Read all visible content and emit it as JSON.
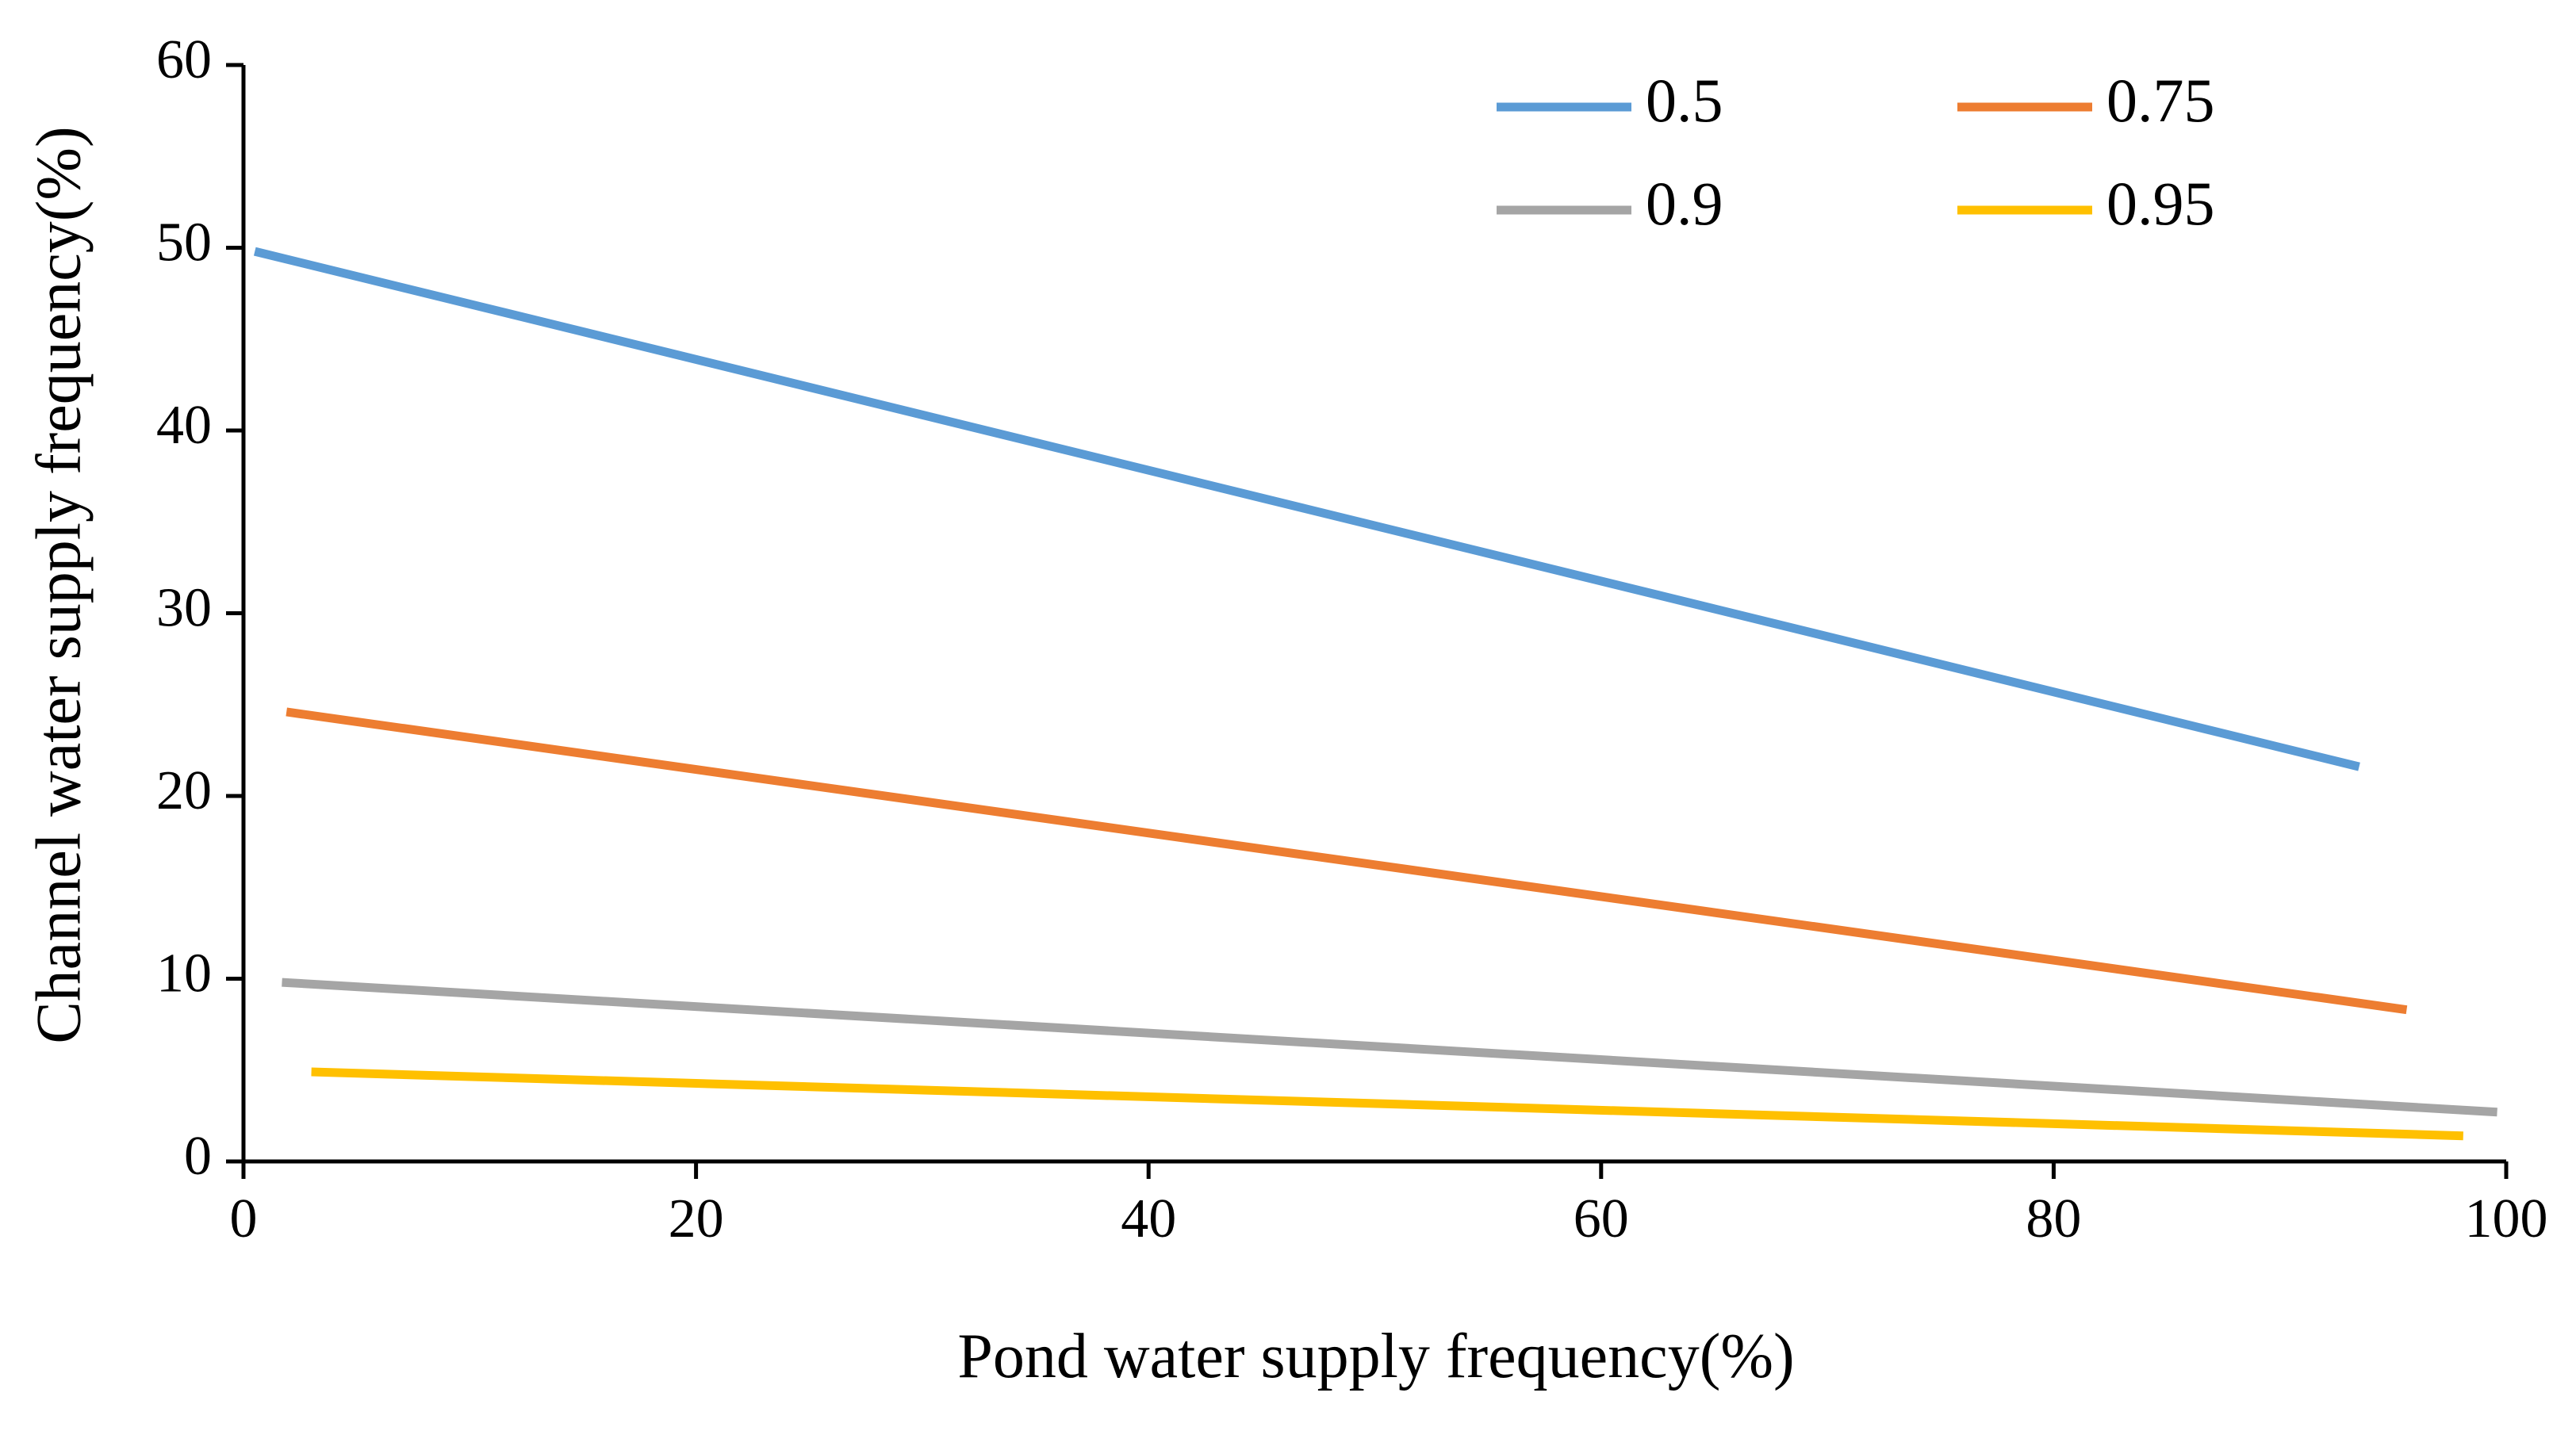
{
  "chart_data": {
    "type": "line",
    "title": "",
    "xlabel": "Pond water supply frequency(%)",
    "ylabel": "Channel water supply frequency(%)",
    "xlim": [
      0,
      100
    ],
    "ylim": [
      0,
      60
    ],
    "x_ticks": [
      "0",
      "20",
      "40",
      "60",
      "80",
      "100"
    ],
    "y_ticks": [
      "0",
      "10",
      "20",
      "30",
      "40",
      "50",
      "60"
    ],
    "grid": false,
    "legend_position": "top-right",
    "series": [
      {
        "name": "0.5",
        "color": "#5B9BD5",
        "x": [
          0.5,
          93.5
        ],
        "y": [
          49.8,
          21.6
        ]
      },
      {
        "name": "0.75",
        "color": "#ED7D31",
        "x": [
          1.9,
          95.6
        ],
        "y": [
          24.6,
          8.3
        ]
      },
      {
        "name": "0.9",
        "color": "#A5A5A5",
        "x": [
          1.7,
          99.6
        ],
        "y": [
          9.8,
          2.7
        ]
      },
      {
        "name": "0.95",
        "color": "#FFC000",
        "x": [
          3.0,
          98.1
        ],
        "y": [
          4.9,
          1.4
        ]
      }
    ]
  }
}
